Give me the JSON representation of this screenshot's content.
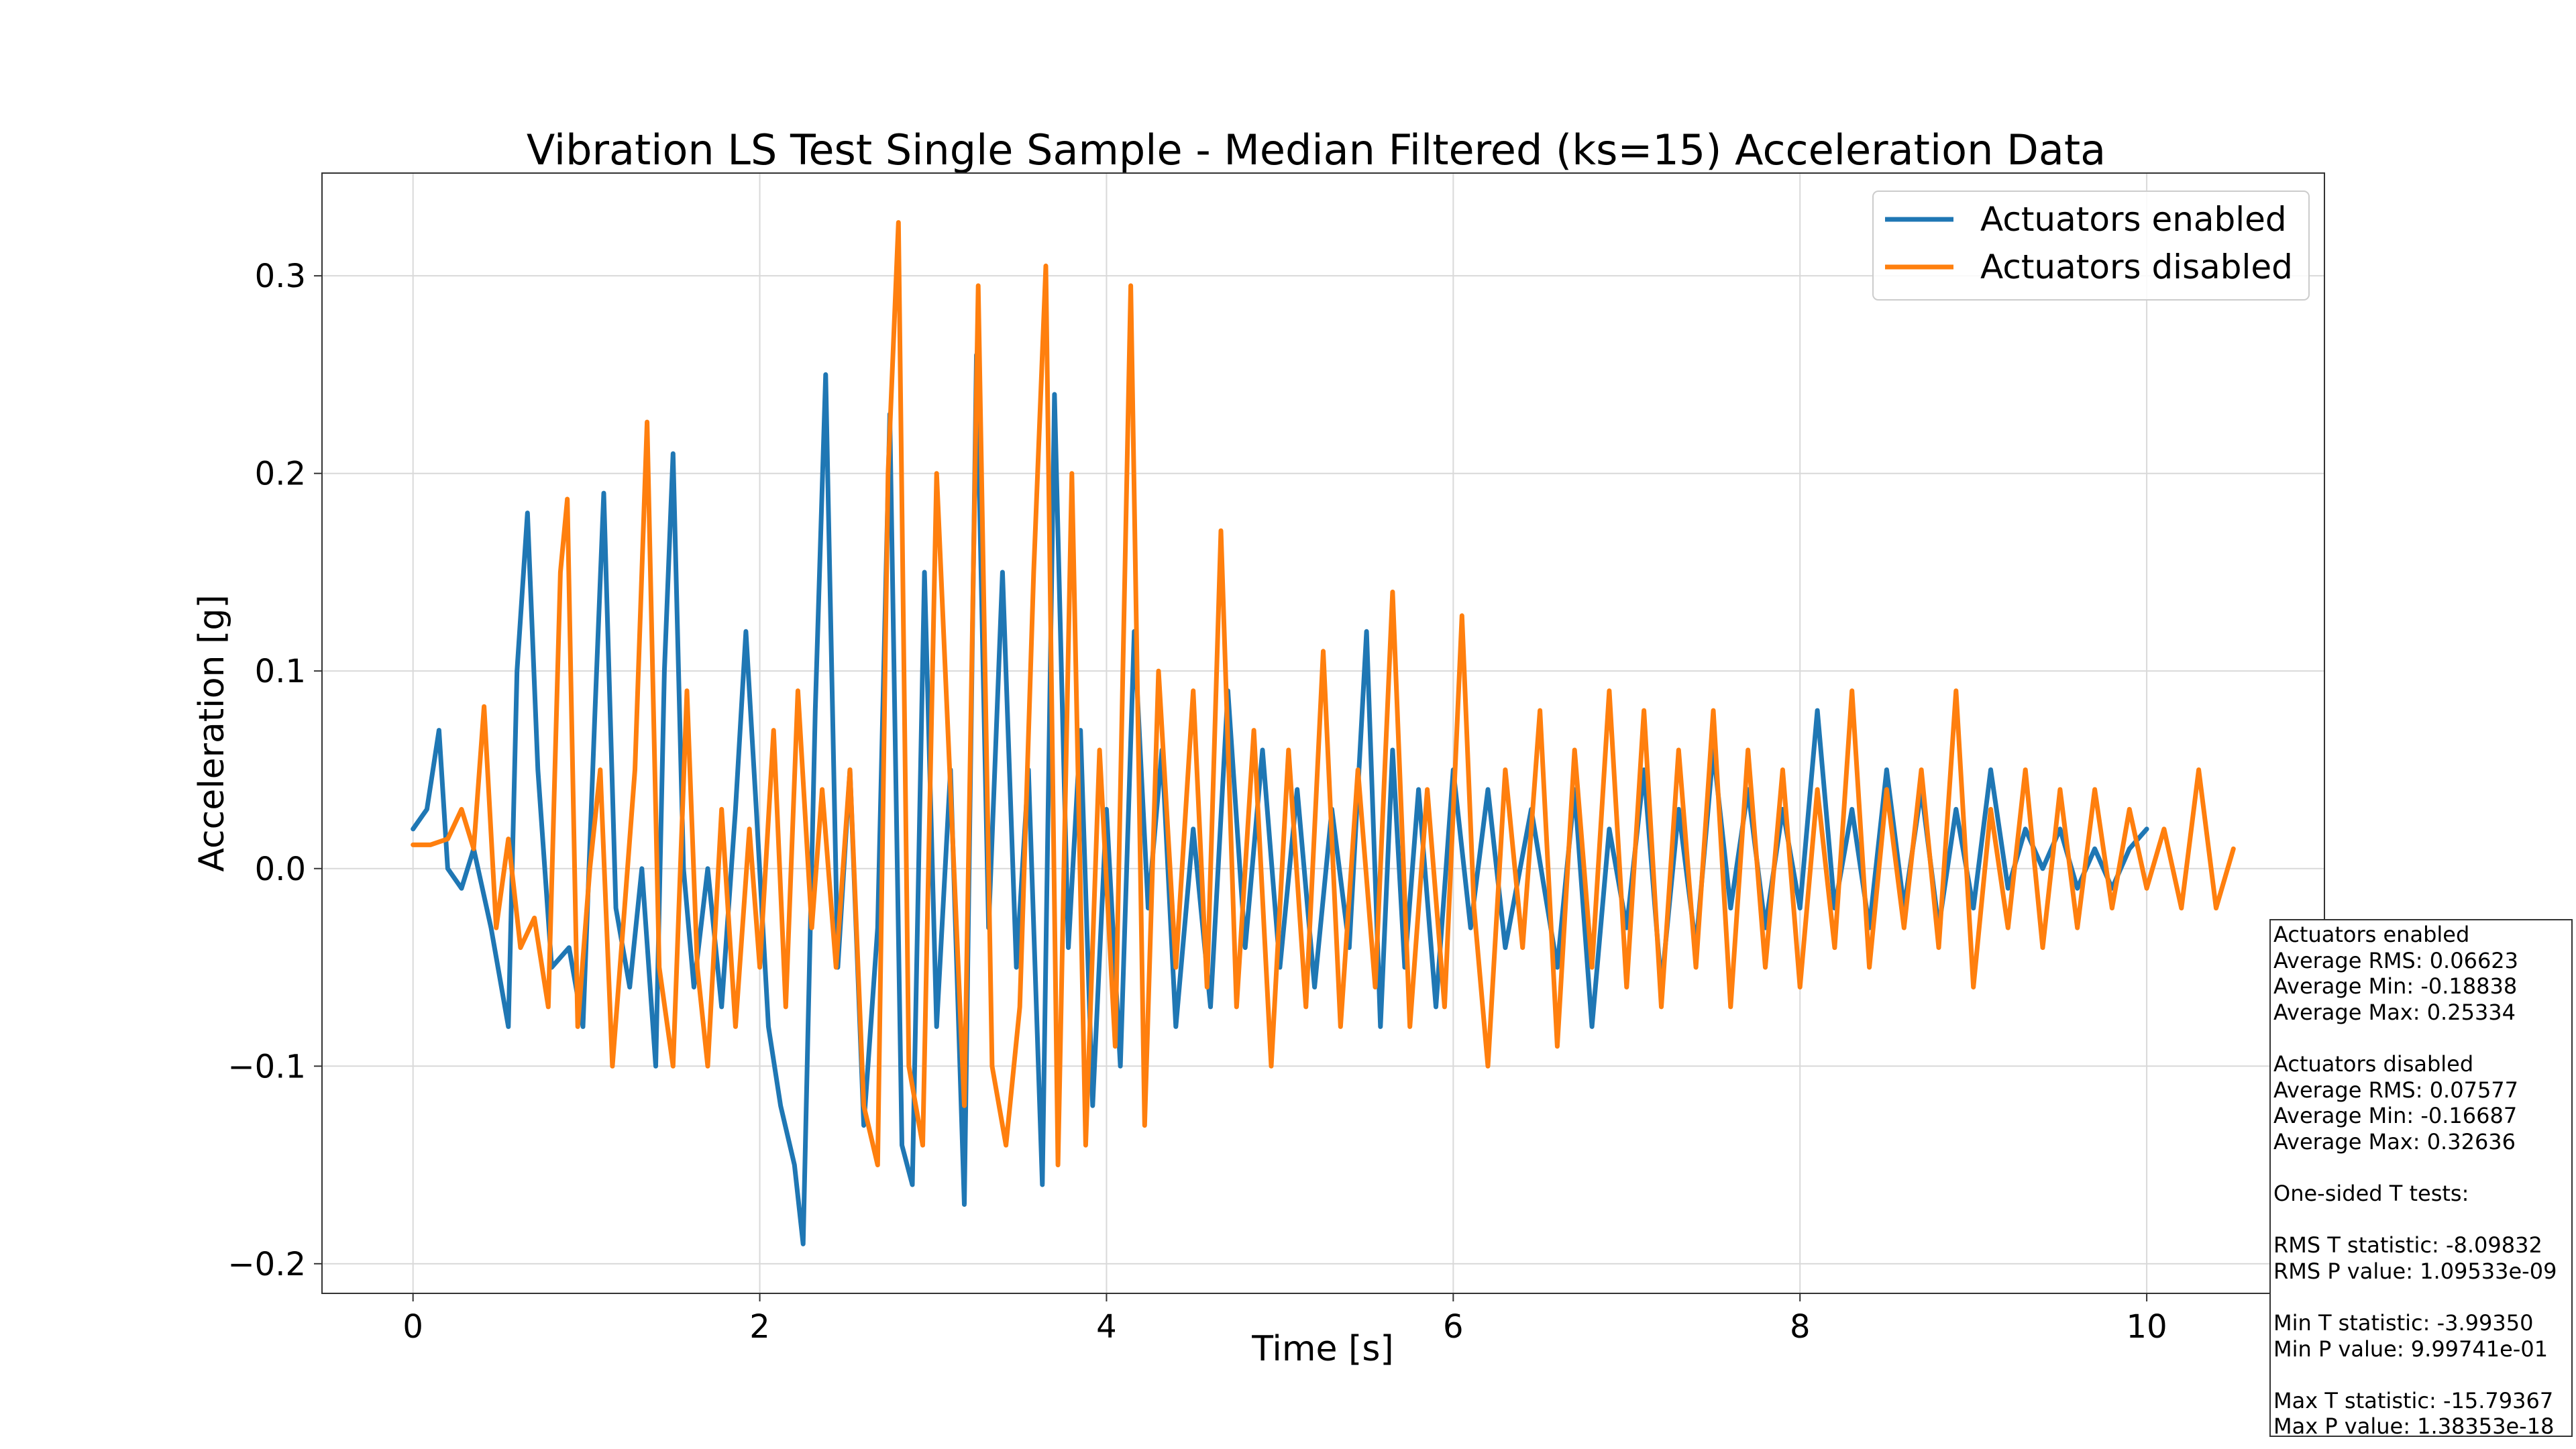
{
  "chart_data": {
    "type": "line",
    "title": "Vibration LS Test Single Sample - Median Filtered (ks=15) Acceleration Data",
    "xlabel": "Time [s]",
    "ylabel": "Acceleration [g]",
    "xlim": [
      -0.525,
      11.025
    ],
    "ylim": [
      -0.215,
      0.352
    ],
    "xticks": [
      0,
      2,
      4,
      6,
      8,
      10
    ],
    "xtick_labels": [
      "0",
      "2",
      "4",
      "6",
      "8",
      "10"
    ],
    "yticks": [
      -0.2,
      -0.1,
      0.0,
      0.1,
      0.2,
      0.3
    ],
    "ytick_labels": [
      "−0.2",
      "−0.1",
      "0.0",
      "0.1",
      "0.2",
      "0.3"
    ],
    "grid": true,
    "legend_position": "top-right",
    "series": [
      {
        "name": "Actuators enabled",
        "color": "#1f77b4",
        "x": [
          0.0,
          0.08,
          0.15,
          0.2,
          0.28,
          0.35,
          0.45,
          0.55,
          0.6,
          0.66,
          0.72,
          0.8,
          0.9,
          0.98,
          1.05,
          1.1,
          1.17,
          1.25,
          1.32,
          1.4,
          1.45,
          1.5,
          1.56,
          1.62,
          1.7,
          1.78,
          1.86,
          1.92,
          1.98,
          2.05,
          2.12,
          2.2,
          2.25,
          2.32,
          2.38,
          2.45,
          2.52,
          2.6,
          2.68,
          2.75,
          2.82,
          2.88,
          2.95,
          3.02,
          3.1,
          3.18,
          3.25,
          3.32,
          3.4,
          3.48,
          3.55,
          3.63,
          3.7,
          3.78,
          3.85,
          3.92,
          4.0,
          4.08,
          4.16,
          4.24,
          4.32,
          4.4,
          4.5,
          4.6,
          4.7,
          4.8,
          4.9,
          5.0,
          5.1,
          5.2,
          5.3,
          5.4,
          5.5,
          5.58,
          5.65,
          5.72,
          5.8,
          5.9,
          6.0,
          6.1,
          6.2,
          6.3,
          6.45,
          6.6,
          6.7,
          6.8,
          6.9,
          7.0,
          7.1,
          7.2,
          7.3,
          7.4,
          7.5,
          7.6,
          7.7,
          7.8,
          7.9,
          8.0,
          8.1,
          8.2,
          8.3,
          8.4,
          8.5,
          8.6,
          8.7,
          8.8,
          8.9,
          9.0,
          9.1,
          9.2,
          9.3,
          9.4,
          9.5,
          9.6,
          9.7,
          9.8,
          9.9,
          10.0
        ],
        "y": [
          0.02,
          0.03,
          0.07,
          0.0,
          -0.01,
          0.01,
          -0.03,
          -0.08,
          0.1,
          0.18,
          0.05,
          -0.05,
          -0.04,
          -0.08,
          0.08,
          0.19,
          -0.02,
          -0.06,
          0.0,
          -0.1,
          0.1,
          0.21,
          0.0,
          -0.06,
          0.0,
          -0.07,
          0.03,
          0.12,
          0.03,
          -0.08,
          -0.12,
          -0.15,
          -0.19,
          0.08,
          0.25,
          -0.05,
          0.05,
          -0.13,
          -0.03,
          0.23,
          -0.14,
          -0.16,
          0.15,
          -0.08,
          0.05,
          -0.17,
          0.26,
          -0.03,
          0.15,
          -0.05,
          0.05,
          -0.16,
          0.24,
          -0.04,
          0.07,
          -0.12,
          0.03,
          -0.1,
          0.12,
          -0.02,
          0.06,
          -0.08,
          0.02,
          -0.07,
          0.09,
          -0.04,
          0.06,
          -0.05,
          0.04,
          -0.06,
          0.03,
          -0.04,
          0.12,
          -0.08,
          0.06,
          -0.05,
          0.04,
          -0.07,
          0.05,
          -0.03,
          0.04,
          -0.04,
          0.03,
          -0.05,
          0.04,
          -0.08,
          0.02,
          -0.03,
          0.05,
          -0.06,
          0.03,
          -0.04,
          0.06,
          -0.02,
          0.04,
          -0.03,
          0.03,
          -0.02,
          0.08,
          -0.02,
          0.03,
          -0.03,
          0.05,
          -0.02,
          0.04,
          -0.03,
          0.03,
          -0.02,
          0.05,
          -0.01,
          0.02,
          0.0,
          0.02,
          -0.01,
          0.01,
          -0.01,
          0.01,
          0.02
        ]
      },
      {
        "name": "Actuators disabled",
        "color": "#ff7f0e",
        "x": [
          0.0,
          0.1,
          0.2,
          0.28,
          0.35,
          0.41,
          0.48,
          0.55,
          0.62,
          0.7,
          0.78,
          0.85,
          0.89,
          0.95,
          1.02,
          1.08,
          1.15,
          1.22,
          1.28,
          1.35,
          1.42,
          1.5,
          1.58,
          1.64,
          1.7,
          1.78,
          1.86,
          1.94,
          2.0,
          2.08,
          2.15,
          2.22,
          2.3,
          2.36,
          2.44,
          2.52,
          2.6,
          2.68,
          2.74,
          2.8,
          2.86,
          2.94,
          3.02,
          3.1,
          3.18,
          3.26,
          3.34,
          3.42,
          3.5,
          3.58,
          3.65,
          3.72,
          3.8,
          3.88,
          3.96,
          4.05,
          4.14,
          4.22,
          4.3,
          4.4,
          4.5,
          4.58,
          4.66,
          4.75,
          4.85,
          4.95,
          5.05,
          5.15,
          5.25,
          5.35,
          5.45,
          5.55,
          5.65,
          5.75,
          5.85,
          5.95,
          6.05,
          6.12,
          6.2,
          6.3,
          6.4,
          6.5,
          6.6,
          6.7,
          6.8,
          6.9,
          7.0,
          7.1,
          7.2,
          7.3,
          7.4,
          7.5,
          7.6,
          7.7,
          7.8,
          7.9,
          8.0,
          8.1,
          8.2,
          8.3,
          8.4,
          8.5,
          8.6,
          8.7,
          8.8,
          8.9,
          9.0,
          9.1,
          9.2,
          9.3,
          9.4,
          9.5,
          9.6,
          9.7,
          9.8,
          9.9,
          10.0,
          10.1,
          10.2,
          10.3,
          10.4,
          10.5
        ],
        "y": [
          0.012,
          0.012,
          0.015,
          0.03,
          0.01,
          0.082,
          -0.03,
          0.015,
          -0.04,
          -0.025,
          -0.07,
          0.15,
          0.187,
          -0.08,
          0.0,
          0.05,
          -0.1,
          -0.02,
          0.05,
          0.226,
          -0.05,
          -0.1,
          0.09,
          -0.05,
          -0.1,
          0.03,
          -0.08,
          0.02,
          -0.05,
          0.07,
          -0.07,
          0.09,
          -0.03,
          0.04,
          -0.05,
          0.05,
          -0.12,
          -0.15,
          0.2,
          0.327,
          -0.1,
          -0.14,
          0.2,
          0.04,
          -0.12,
          0.295,
          -0.1,
          -0.14,
          -0.07,
          0.15,
          0.305,
          -0.15,
          0.2,
          -0.14,
          0.06,
          -0.09,
          0.295,
          -0.13,
          0.1,
          -0.05,
          0.09,
          -0.06,
          0.171,
          -0.07,
          0.07,
          -0.1,
          0.06,
          -0.07,
          0.11,
          -0.08,
          0.05,
          -0.06,
          0.14,
          -0.08,
          0.04,
          -0.07,
          0.128,
          -0.02,
          -0.1,
          0.05,
          -0.04,
          0.08,
          -0.09,
          0.06,
          -0.05,
          0.09,
          -0.06,
          0.08,
          -0.07,
          0.06,
          -0.05,
          0.08,
          -0.07,
          0.06,
          -0.05,
          0.05,
          -0.06,
          0.04,
          -0.04,
          0.09,
          -0.05,
          0.04,
          -0.03,
          0.05,
          -0.04,
          0.09,
          -0.06,
          0.03,
          -0.03,
          0.05,
          -0.04,
          0.04,
          -0.03,
          0.04,
          -0.02,
          0.03,
          -0.01,
          0.02,
          -0.02,
          0.05,
          -0.02,
          0.01
        ]
      }
    ]
  },
  "stats_box": {
    "lines": [
      "Actuators enabled",
      "Average RMS: 0.06623",
      "Average Min: -0.18838",
      "Average Max: 0.25334",
      "",
      "Actuators disabled",
      "Average RMS: 0.07577",
      "Average Min: -0.16687",
      "Average Max: 0.32636",
      "",
      "One-sided T tests:",
      "",
      "RMS T statistic: -8.09832",
      "RMS P value: 1.09533e-09",
      "",
      "Min T statistic: -3.99350",
      "Min P value: 9.99741e-01",
      "",
      "Max T statistic: -15.79367",
      "Max P value: 1.38353e-18"
    ]
  }
}
